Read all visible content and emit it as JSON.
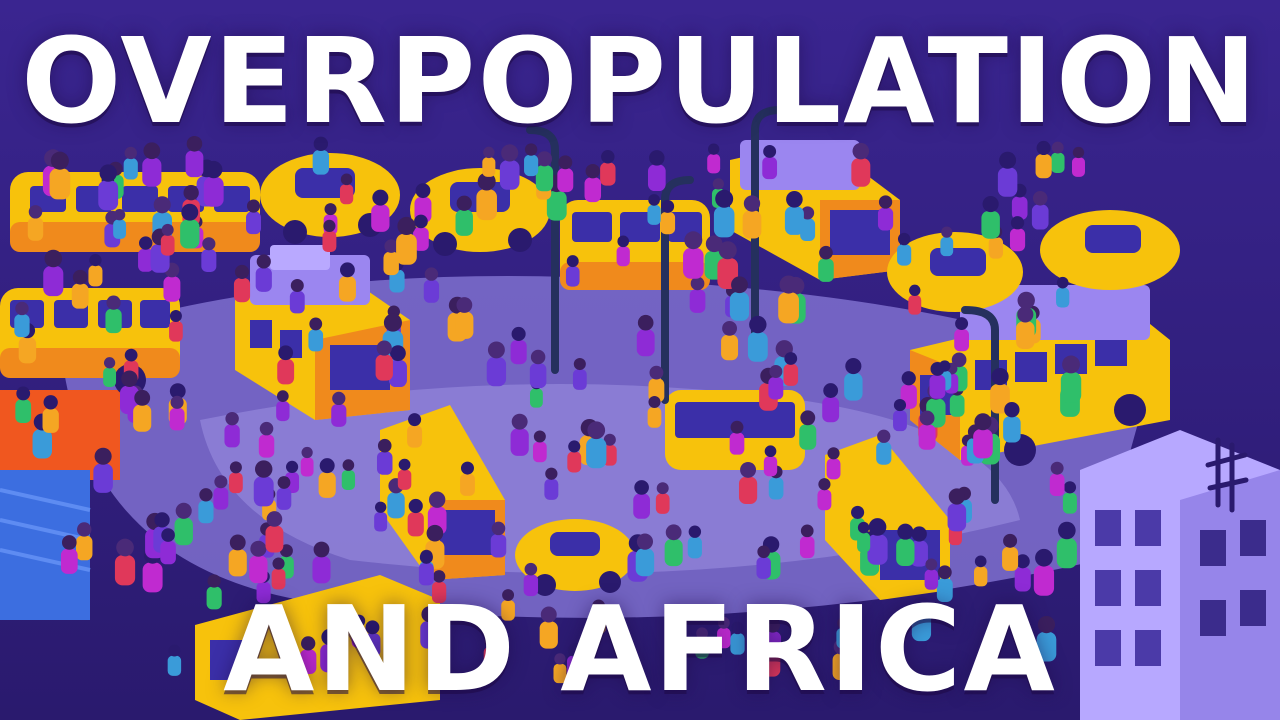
{
  "title": {
    "line1": "OVERPOPULATION",
    "line2": "AND AFRICA"
  },
  "colors": {
    "background": "#2a1a6e",
    "street": "#8b7fd6",
    "bus_yellow": "#f7c20c",
    "bus_orange": "#f08a1c",
    "window": "#3b2fa8",
    "cargo": "#9b86f0",
    "building": "#b7a8ff",
    "text": "#ffffff"
  },
  "scene": {
    "description_icon": "crowded-street-illustration",
    "logo_icon": "kurzgesagt-logo"
  }
}
